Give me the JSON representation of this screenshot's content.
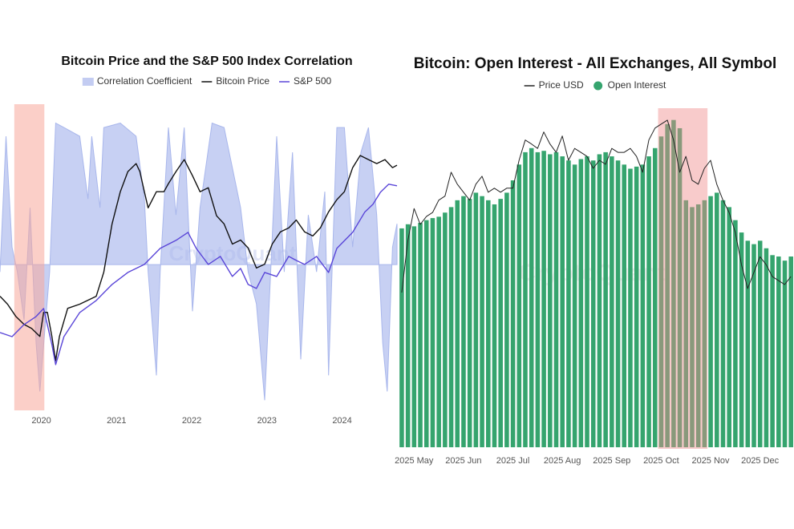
{
  "chart_data": [
    {
      "type": "line",
      "title": "Bitcoin Price and the S&P 500 Index Correlation",
      "xlim": [
        2019.45,
        2024.73
      ],
      "xticks": [
        2020,
        2021,
        2022,
        2023,
        2024
      ],
      "ylim": [
        -1.0,
        1.1
      ],
      "y2lim": [
        2240,
        158000
      ],
      "y2scale": "log",
      "y3lim": [
        1530,
        7315
      ],
      "highlight": [
        2019.64,
        2020.04
      ],
      "highlight_color": "#f8a79b",
      "watermark": "CryptoQuant",
      "series": [
        {
          "name": "Correlation Coefficient",
          "color": "#a9b7ec",
          "fill": true,
          "x": [
            2019.45,
            2019.53,
            2019.61,
            2019.68,
            2019.77,
            2019.85,
            2019.93,
            2019.98,
            2020.05,
            2020.11,
            2020.19,
            2020.3,
            2020.51,
            2020.62,
            2020.67,
            2020.78,
            2020.83,
            2021.05,
            2021.26,
            2021.37,
            2021.42,
            2021.53,
            2021.58,
            2021.69,
            2021.79,
            2021.9,
            2022.01,
            2022.11,
            2022.27,
            2022.43,
            2022.65,
            2022.75,
            2022.86,
            2022.97,
            2023.05,
            2023.13,
            2023.23,
            2023.34,
            2023.45,
            2023.55,
            2023.66,
            2023.77,
            2023.82,
            2023.93,
            2024.03,
            2024.14,
            2024.25,
            2024.35,
            2024.46,
            2024.54,
            2024.6,
            2024.67,
            2024.73
          ],
          "values": [
            -0.05,
            0.88,
            0.12,
            -0.05,
            -0.38,
            0.39,
            -0.54,
            -0.87,
            -0.43,
            -0.05,
            0.97,
            0.94,
            0.88,
            0.45,
            0.88,
            0.39,
            0.94,
            0.97,
            0.88,
            0.45,
            -0.05,
            -0.76,
            -0.05,
            0.94,
            0.34,
            0.94,
            -0.32,
            0.39,
            0.97,
            0.94,
            0.39,
            -0.05,
            -0.27,
            -0.93,
            -0.05,
            0.88,
            -0.05,
            0.77,
            -0.65,
            0.34,
            -0.05,
            0.5,
            -0.76,
            0.94,
            0.94,
            0.12,
            0.77,
            0.94,
            0.34,
            -0.54,
            -0.87,
            0.12,
            0.28
          ]
        },
        {
          "name": "Bitcoin Price",
          "color": "#111111",
          "axis": "y2",
          "x": [
            2019.45,
            2019.55,
            2019.66,
            2019.77,
            2019.87,
            2019.98,
            2020.03,
            2020.08,
            2020.14,
            2020.19,
            2020.24,
            2020.35,
            2020.51,
            2020.73,
            2020.83,
            2020.94,
            2021.05,
            2021.15,
            2021.26,
            2021.31,
            2021.37,
            2021.42,
            2021.53,
            2021.63,
            2021.69,
            2021.79,
            2021.9,
            2022.01,
            2022.11,
            2022.22,
            2022.33,
            2022.43,
            2022.54,
            2022.65,
            2022.75,
            2022.86,
            2022.97,
            2023.07,
            2023.18,
            2023.29,
            2023.39,
            2023.5,
            2023.61,
            2023.71,
            2023.82,
            2023.93,
            2024.03,
            2024.14,
            2024.24,
            2024.35,
            2024.46,
            2024.57,
            2024.67,
            2024.73
          ],
          "values": [
            10950,
            9800,
            8280,
            7400,
            7000,
            6260,
            8750,
            8750,
            6260,
            4470,
            6260,
            9250,
            9800,
            10950,
            15300,
            29900,
            46800,
            61900,
            69200,
            61900,
            46800,
            37400,
            46800,
            46800,
            52400,
            61900,
            73200,
            58500,
            46800,
            49500,
            33500,
            29900,
            22600,
            23900,
            21400,
            16200,
            17100,
            22600,
            26800,
            28300,
            31600,
            26800,
            25300,
            28300,
            35400,
            41900,
            46800,
            65400,
            77400,
            73200,
            69200,
            73200,
            65400,
            67700
          ]
        },
        {
          "name": "S&P 500",
          "color": "#5a46d8",
          "axis": "y3",
          "x": [
            2019.45,
            2019.61,
            2019.77,
            2019.93,
            2020.03,
            2020.14,
            2020.19,
            2020.3,
            2020.51,
            2020.73,
            2020.94,
            2021.15,
            2021.37,
            2021.58,
            2021.79,
            2021.95,
            2022.06,
            2022.22,
            2022.38,
            2022.54,
            2022.65,
            2022.75,
            2022.86,
            2022.97,
            2023.13,
            2023.29,
            2023.39,
            2023.5,
            2023.66,
            2023.82,
            2023.93,
            2024.14,
            2024.3,
            2024.41,
            2024.51,
            2024.62,
            2024.73
          ],
          "values": [
            3000,
            2924,
            3152,
            3303,
            3455,
            2773,
            2394,
            2924,
            3379,
            3606,
            3909,
            4136,
            4288,
            4591,
            4742,
            4894,
            4591,
            4288,
            4439,
            4061,
            4212,
            3909,
            3833,
            4136,
            4061,
            4439,
            4364,
            4288,
            4439,
            4136,
            4591,
            4894,
            5273,
            5424,
            5652,
            5803,
            5773
          ]
        }
      ]
    },
    {
      "type": "bar",
      "title": "Bitcoin: Open Interest - All Exchanges, All Symbol",
      "categories": [
        null,
        null,
        "2025 May",
        null,
        null,
        null,
        null,
        null,
        null,
        null,
        "2025 Jun",
        null,
        null,
        null,
        null,
        null,
        null,
        null,
        "2025 Jul",
        null,
        null,
        null,
        null,
        null,
        null,
        null,
        "2025 Aug",
        null,
        null,
        null,
        null,
        null,
        null,
        null,
        "2025 Sep",
        null,
        null,
        null,
        null,
        null,
        null,
        null,
        "2025 Oct",
        null,
        null,
        null,
        null,
        null,
        null,
        null,
        "2025 Nov",
        null,
        null,
        null,
        null,
        null,
        null,
        null,
        "2025 Dec",
        null,
        null,
        null,
        null,
        null
      ],
      "ylim": [
        0,
        50
      ],
      "y2lim": [
        50000,
        127600
      ],
      "highlight": [
        42,
        50
      ],
      "highlight_color": "#f08c8c",
      "watermark": "CryptoQuant",
      "series": [
        {
          "name": "Price USD",
          "type": "line",
          "axis": "y2",
          "color": "#222222",
          "values": [
            85000,
            96800,
            104000,
            100400,
            102200,
            103100,
            105900,
            106800,
            112200,
            109500,
            107700,
            105900,
            109500,
            111300,
            107700,
            108600,
            107700,
            108600,
            108600,
            114900,
            119500,
            118600,
            117600,
            121300,
            118600,
            116700,
            120400,
            114900,
            117600,
            116700,
            115800,
            113100,
            114900,
            114000,
            117600,
            116700,
            116700,
            117600,
            115800,
            112200,
            119500,
            122200,
            123100,
            124000,
            119500,
            112200,
            115800,
            110400,
            109500,
            113100,
            114900,
            109500,
            105900,
            103100,
            98600,
            91300,
            85900,
            89500,
            93100,
            91300,
            88600,
            87700,
            86800,
            88600
          ]
        },
        {
          "name": "Open Interest",
          "type": "bar",
          "color": "#35a46e",
          "values": [
            31.9,
            32.5,
            32.2,
            32.7,
            33.1,
            33.4,
            33.6,
            34.2,
            35.0,
            36.0,
            36.6,
            36.2,
            37.1,
            36.6,
            36.0,
            35.4,
            36.2,
            37.1,
            38.9,
            41.2,
            43.0,
            43.6,
            43.0,
            43.2,
            42.7,
            43.0,
            42.4,
            41.8,
            41.2,
            42.0,
            42.4,
            41.8,
            42.7,
            43.0,
            42.4,
            41.8,
            41.2,
            40.6,
            40.9,
            41.2,
            42.4,
            43.6,
            45.3,
            47.1,
            47.7,
            46.5,
            36.0,
            35.0,
            35.4,
            36.0,
            36.6,
            37.1,
            36.0,
            35.0,
            33.1,
            31.3,
            30.1,
            29.6,
            30.1,
            29.0,
            28.0,
            27.8,
            27.2,
            27.8
          ]
        }
      ]
    }
  ]
}
